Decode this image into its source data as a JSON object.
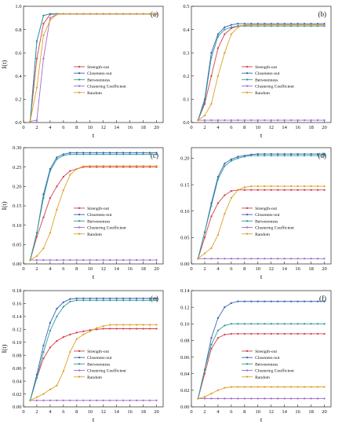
{
  "series_styles": [
    {
      "name": "Strength-out",
      "color": "#d6404a",
      "marker": "circle"
    },
    {
      "name": "Closeness-out",
      "color": "#3a62b8",
      "marker": "circle"
    },
    {
      "name": "Betweenness",
      "color": "#2f9c96",
      "marker": "circle"
    },
    {
      "name": "Clustering Coefficient",
      "color": "#a06ad0",
      "marker": "circle"
    },
    {
      "name": "Random",
      "color": "#e0a02a",
      "marker": "circle"
    }
  ],
  "chart_data": [
    {
      "type": "line",
      "panel": "(a)",
      "xlabel": "t",
      "ylabel": "I(t)",
      "xlim": [
        0,
        21
      ],
      "ylim": [
        0,
        1.0
      ],
      "xticks": [
        0,
        2,
        4,
        6,
        8,
        10,
        12,
        14,
        16,
        18,
        20
      ],
      "yticks": [
        0.0,
        0.2,
        0.4,
        0.6,
        0.8,
        1.0
      ],
      "ytick_labels": [
        "0.0",
        "0.2",
        "0.4",
        "0.6",
        "0.8",
        "1.0"
      ],
      "legend_position": "center-right",
      "x": [
        1,
        2,
        3,
        4,
        5,
        6,
        7,
        8,
        9,
        10,
        11,
        12,
        13,
        14,
        15,
        16,
        17,
        18,
        19,
        20
      ],
      "series": [
        {
          "name": "Strength-out",
          "values": [
            0.01,
            0.55,
            0.85,
            0.93,
            0.935,
            0.935,
            0.935,
            0.935,
            0.935,
            0.935,
            0.935,
            0.935,
            0.935,
            0.935,
            0.935,
            0.935,
            0.935,
            0.935,
            0.935,
            0.935
          ]
        },
        {
          "name": "Closeness-out",
          "values": [
            0.01,
            0.7,
            0.92,
            0.935,
            0.935,
            0.935,
            0.935,
            0.935,
            0.935,
            0.935,
            0.935,
            0.935,
            0.935,
            0.935,
            0.935,
            0.935,
            0.935,
            0.935,
            0.935,
            0.935
          ]
        },
        {
          "name": "Betweenness",
          "values": [
            0.01,
            0.7,
            0.92,
            0.935,
            0.935,
            0.935,
            0.935,
            0.935,
            0.935,
            0.935,
            0.935,
            0.935,
            0.935,
            0.935,
            0.935,
            0.935,
            0.935,
            0.935,
            0.935,
            0.935
          ]
        },
        {
          "name": "Clustering Coefficient",
          "values": [
            0.01,
            0.02,
            0.55,
            0.9,
            0.93,
            0.935,
            0.935,
            0.935,
            0.935,
            0.935,
            0.935,
            0.935,
            0.935,
            0.935,
            0.935,
            0.935,
            0.935,
            0.935,
            0.935,
            0.935
          ]
        },
        {
          "name": "Random",
          "values": [
            0.01,
            0.3,
            0.75,
            0.88,
            0.93,
            0.935,
            0.935,
            0.935,
            0.935,
            0.935,
            0.935,
            0.935,
            0.935,
            0.935,
            0.935,
            0.935,
            0.935,
            0.935,
            0.935,
            0.935
          ]
        }
      ]
    },
    {
      "type": "line",
      "panel": "(b)",
      "xlabel": "t",
      "ylabel": "",
      "xlim": [
        0,
        21
      ],
      "ylim": [
        0,
        0.5
      ],
      "xticks": [
        0,
        2,
        4,
        6,
        8,
        10,
        12,
        14,
        16,
        18,
        20
      ],
      "yticks": [
        0.0,
        0.1,
        0.2,
        0.3,
        0.4,
        0.5
      ],
      "ytick_labels": [
        "0.0",
        "0.1",
        "0.2",
        "0.3",
        "0.4",
        "0.5"
      ],
      "legend_position": "center-right",
      "x": [
        1,
        2,
        3,
        4,
        5,
        6,
        7,
        8,
        9,
        10,
        11,
        12,
        13,
        14,
        15,
        16,
        17,
        18,
        19,
        20
      ],
      "series": [
        {
          "name": "Strength-out",
          "values": [
            0.01,
            0.08,
            0.2,
            0.32,
            0.38,
            0.405,
            0.415,
            0.418,
            0.42,
            0.42,
            0.42,
            0.42,
            0.42,
            0.42,
            0.42,
            0.42,
            0.42,
            0.42,
            0.42,
            0.42
          ]
        },
        {
          "name": "Closeness-out",
          "values": [
            0.01,
            0.1,
            0.3,
            0.38,
            0.41,
            0.42,
            0.425,
            0.425,
            0.425,
            0.425,
            0.425,
            0.425,
            0.425,
            0.425,
            0.425,
            0.425,
            0.425,
            0.425,
            0.425,
            0.425
          ]
        },
        {
          "name": "Betweenness",
          "values": [
            0.01,
            0.09,
            0.28,
            0.37,
            0.4,
            0.41,
            0.415,
            0.415,
            0.415,
            0.415,
            0.415,
            0.415,
            0.415,
            0.415,
            0.415,
            0.415,
            0.415,
            0.415,
            0.415,
            0.415
          ]
        },
        {
          "name": "Clustering Coefficient",
          "values": [
            0.01,
            0.01,
            0.01,
            0.01,
            0.01,
            0.01,
            0.01,
            0.01,
            0.01,
            0.01,
            0.01,
            0.01,
            0.01,
            0.01,
            0.01,
            0.01,
            0.01,
            0.01,
            0.01,
            0.01
          ]
        },
        {
          "name": "Random",
          "values": [
            0.01,
            0.03,
            0.08,
            0.2,
            0.3,
            0.38,
            0.41,
            0.42,
            0.42,
            0.42,
            0.42,
            0.42,
            0.42,
            0.42,
            0.42,
            0.42,
            0.42,
            0.42,
            0.42,
            0.42
          ]
        }
      ]
    },
    {
      "type": "line",
      "panel": "(c)",
      "xlabel": "t",
      "ylabel": "I(t)",
      "xlim": [
        0,
        21
      ],
      "ylim": [
        0,
        0.3
      ],
      "xticks": [
        0,
        2,
        4,
        6,
        8,
        10,
        12,
        14,
        16,
        18,
        20
      ],
      "yticks": [
        0.0,
        0.05,
        0.1,
        0.15,
        0.2,
        0.25,
        0.3
      ],
      "ytick_labels": [
        "0.00",
        "0.05",
        "0.10",
        "0.15",
        "0.20",
        "0.25",
        "0.30"
      ],
      "legend_position": "center-right",
      "x": [
        1,
        2,
        3,
        4,
        5,
        6,
        7,
        8,
        9,
        10,
        11,
        12,
        13,
        14,
        15,
        16,
        17,
        18,
        19,
        20
      ],
      "series": [
        {
          "name": "Strength-out",
          "values": [
            0.01,
            0.07,
            0.12,
            0.17,
            0.2,
            0.225,
            0.24,
            0.245,
            0.25,
            0.25,
            0.25,
            0.25,
            0.25,
            0.25,
            0.25,
            0.25,
            0.25,
            0.25,
            0.25,
            0.25
          ]
        },
        {
          "name": "Closeness-out",
          "values": [
            0.01,
            0.08,
            0.18,
            0.245,
            0.275,
            0.283,
            0.287,
            0.287,
            0.287,
            0.287,
            0.287,
            0.287,
            0.287,
            0.287,
            0.287,
            0.287,
            0.287,
            0.287,
            0.287,
            0.287
          ]
        },
        {
          "name": "Betweenness",
          "values": [
            0.01,
            0.08,
            0.17,
            0.24,
            0.27,
            0.28,
            0.283,
            0.283,
            0.283,
            0.283,
            0.283,
            0.283,
            0.283,
            0.283,
            0.283,
            0.283,
            0.283,
            0.283,
            0.283,
            0.283
          ]
        },
        {
          "name": "Clustering Coefficient",
          "values": [
            0.01,
            0.01,
            0.01,
            0.01,
            0.01,
            0.01,
            0.01,
            0.01,
            0.01,
            0.01,
            0.01,
            0.01,
            0.01,
            0.01,
            0.01,
            0.01,
            0.01,
            0.01,
            0.01,
            0.01
          ]
        },
        {
          "name": "Random",
          "values": [
            0.01,
            0.02,
            0.04,
            0.08,
            0.14,
            0.19,
            0.23,
            0.245,
            0.252,
            0.253,
            0.253,
            0.253,
            0.253,
            0.253,
            0.253,
            0.253,
            0.253,
            0.253,
            0.253,
            0.253
          ]
        }
      ]
    },
    {
      "type": "line",
      "panel": "(d)",
      "xlabel": "t",
      "ylabel": "",
      "xlim": [
        0,
        21
      ],
      "ylim": [
        0,
        0.22
      ],
      "xticks": [
        0,
        2,
        4,
        6,
        8,
        10,
        12,
        14,
        16,
        18,
        20
      ],
      "yticks": [
        0.0,
        0.05,
        0.1,
        0.15,
        0.2
      ],
      "ytick_labels": [
        "0.00",
        "0.05",
        "0.10",
        "0.15",
        "0.20"
      ],
      "legend_position": "center-right",
      "x": [
        1,
        2,
        3,
        4,
        5,
        6,
        7,
        8,
        9,
        10,
        11,
        12,
        13,
        14,
        15,
        16,
        17,
        18,
        19,
        20
      ],
      "series": [
        {
          "name": "Strength-out",
          "values": [
            0.01,
            0.05,
            0.09,
            0.115,
            0.13,
            0.138,
            0.14,
            0.14,
            0.14,
            0.14,
            0.14,
            0.14,
            0.14,
            0.14,
            0.14,
            0.14,
            0.14,
            0.14,
            0.14,
            0.14
          ]
        },
        {
          "name": "Closeness-out",
          "values": [
            0.01,
            0.06,
            0.115,
            0.165,
            0.19,
            0.198,
            0.203,
            0.205,
            0.207,
            0.208,
            0.208,
            0.208,
            0.208,
            0.208,
            0.208,
            0.208,
            0.208,
            0.208,
            0.208,
            0.208
          ]
        },
        {
          "name": "Betweenness",
          "values": [
            0.01,
            0.06,
            0.11,
            0.16,
            0.185,
            0.195,
            0.2,
            0.203,
            0.205,
            0.205,
            0.205,
            0.205,
            0.205,
            0.205,
            0.205,
            0.205,
            0.205,
            0.205,
            0.205,
            0.205
          ]
        },
        {
          "name": "Clustering Coefficient",
          "values": [
            0.01,
            0.01,
            0.01,
            0.01,
            0.01,
            0.01,
            0.01,
            0.01,
            0.01,
            0.01,
            0.01,
            0.01,
            0.01,
            0.01,
            0.01,
            0.01,
            0.01,
            0.01,
            0.01,
            0.01
          ]
        },
        {
          "name": "Random",
          "values": [
            0.01,
            0.02,
            0.03,
            0.055,
            0.095,
            0.125,
            0.14,
            0.145,
            0.147,
            0.147,
            0.147,
            0.147,
            0.147,
            0.147,
            0.147,
            0.147,
            0.147,
            0.147,
            0.147,
            0.147
          ]
        }
      ]
    },
    {
      "type": "line",
      "panel": "(e)",
      "xlabel": "t",
      "ylabel": "I(t)",
      "xlim": [
        0,
        21
      ],
      "ylim": [
        0,
        0.18
      ],
      "xticks": [
        0,
        2,
        4,
        6,
        8,
        10,
        12,
        14,
        16,
        18,
        20
      ],
      "yticks": [
        0.0,
        0.02,
        0.04,
        0.06,
        0.08,
        0.1,
        0.12,
        0.14,
        0.16,
        0.18
      ],
      "ytick_labels": [
        "0.00",
        "0.02",
        "0.04",
        "0.06",
        "0.08",
        "0.10",
        "0.12",
        "0.14",
        "0.16",
        "0.18"
      ],
      "legend_position": "center-right",
      "x": [
        1,
        2,
        3,
        4,
        5,
        6,
        7,
        8,
        9,
        10,
        11,
        12,
        13,
        14,
        15,
        16,
        17,
        18,
        19,
        20
      ],
      "series": [
        {
          "name": "Strength-out",
          "values": [
            0.01,
            0.045,
            0.075,
            0.092,
            0.102,
            0.108,
            0.112,
            0.115,
            0.117,
            0.119,
            0.12,
            0.121,
            0.121,
            0.121,
            0.121,
            0.121,
            0.121,
            0.121,
            0.121,
            0.121
          ]
        },
        {
          "name": "Closeness-out",
          "values": [
            0.01,
            0.05,
            0.095,
            0.13,
            0.152,
            0.162,
            0.167,
            0.168,
            0.168,
            0.168,
            0.168,
            0.168,
            0.168,
            0.168,
            0.168,
            0.168,
            0.168,
            0.168,
            0.168,
            0.168
          ]
        },
        {
          "name": "Betweenness",
          "values": [
            0.01,
            0.045,
            0.085,
            0.118,
            0.14,
            0.155,
            0.163,
            0.165,
            0.165,
            0.165,
            0.165,
            0.165,
            0.165,
            0.165,
            0.165,
            0.165,
            0.165,
            0.165,
            0.165,
            0.165
          ]
        },
        {
          "name": "Clustering Coefficient",
          "values": [
            0.01,
            0.01,
            0.01,
            0.01,
            0.01,
            0.01,
            0.01,
            0.01,
            0.01,
            0.01,
            0.01,
            0.01,
            0.01,
            0.01,
            0.01,
            0.01,
            0.01,
            0.01,
            0.01,
            0.01
          ]
        },
        {
          "name": "Random",
          "values": [
            0.01,
            0.015,
            0.02,
            0.027,
            0.033,
            0.055,
            0.085,
            0.105,
            0.112,
            0.117,
            0.122,
            0.125,
            0.127,
            0.127,
            0.127,
            0.127,
            0.127,
            0.127,
            0.127,
            0.127
          ]
        }
      ]
    },
    {
      "type": "line",
      "panel": "(f)",
      "xlabel": "t",
      "ylabel": "",
      "xlim": [
        0,
        21
      ],
      "ylim": [
        0,
        0.14
      ],
      "xticks": [
        0,
        2,
        4,
        6,
        8,
        10,
        12,
        14,
        16,
        18,
        20
      ],
      "yticks": [
        0.0,
        0.02,
        0.04,
        0.06,
        0.08,
        0.1,
        0.12,
        0.14
      ],
      "ytick_labels": [
        "0.00",
        "0.02",
        "0.04",
        "0.06",
        "0.08",
        "0.10",
        "0.12",
        "0.14"
      ],
      "legend_position": "center-right",
      "x": [
        1,
        2,
        3,
        4,
        5,
        6,
        7,
        8,
        9,
        10,
        11,
        12,
        13,
        14,
        15,
        16,
        17,
        18,
        19,
        20
      ],
      "series": [
        {
          "name": "Strength-out",
          "values": [
            0.01,
            0.04,
            0.07,
            0.083,
            0.087,
            0.088,
            0.088,
            0.088,
            0.088,
            0.088,
            0.088,
            0.088,
            0.088,
            0.088,
            0.088,
            0.088,
            0.088,
            0.088,
            0.088,
            0.088
          ]
        },
        {
          "name": "Closeness-out",
          "values": [
            0.01,
            0.045,
            0.083,
            0.107,
            0.12,
            0.125,
            0.127,
            0.127,
            0.127,
            0.127,
            0.127,
            0.127,
            0.127,
            0.127,
            0.127,
            0.127,
            0.127,
            0.127,
            0.127,
            0.127
          ]
        },
        {
          "name": "Betweenness",
          "values": [
            0.01,
            0.045,
            0.075,
            0.092,
            0.098,
            0.1,
            0.1,
            0.1,
            0.1,
            0.1,
            0.1,
            0.1,
            0.1,
            0.1,
            0.1,
            0.1,
            0.1,
            0.1,
            0.1,
            0.1
          ]
        },
        {
          "name": "Clustering Coefficient",
          "values": [
            0.01,
            0.01,
            0.01,
            0.01,
            0.01,
            0.01,
            0.01,
            0.01,
            0.01,
            0.01,
            0.01,
            0.01,
            0.01,
            0.01,
            0.01,
            0.01,
            0.01,
            0.01,
            0.01,
            0.01
          ]
        },
        {
          "name": "Random",
          "values": [
            0.01,
            0.012,
            0.016,
            0.02,
            0.023,
            0.024,
            0.024,
            0.024,
            0.024,
            0.024,
            0.024,
            0.024,
            0.024,
            0.024,
            0.024,
            0.024,
            0.024,
            0.024,
            0.024,
            0.024
          ]
        }
      ]
    }
  ]
}
